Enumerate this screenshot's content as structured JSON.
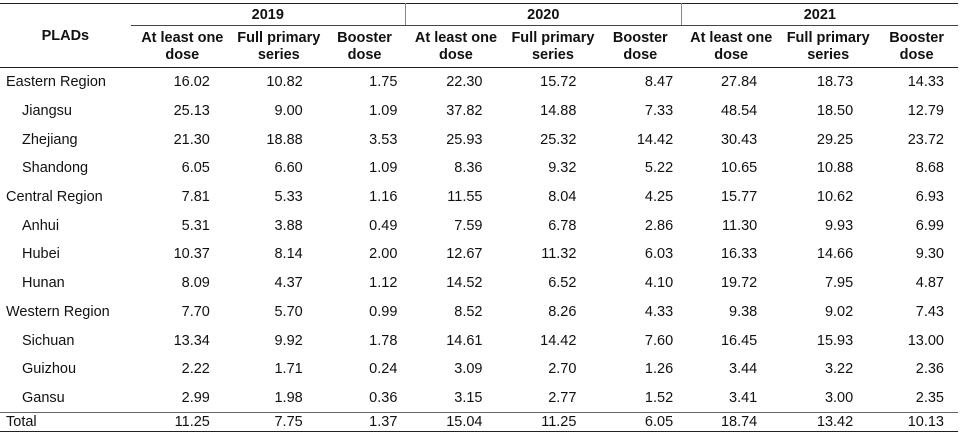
{
  "header": {
    "plads_label": "PLADs",
    "years": [
      "2019",
      "2020",
      "2021"
    ],
    "sub_columns": [
      "At least one dose",
      "Full primary series",
      "Booster dose"
    ]
  },
  "rows": [
    {
      "name": "Eastern Region",
      "level": "region",
      "values": [
        "16.02",
        "10.82",
        "1.75",
        "22.30",
        "15.72",
        "8.47",
        "27.84",
        "18.73",
        "14.33"
      ]
    },
    {
      "name": "Jiangsu",
      "level": "province",
      "values": [
        "25.13",
        "9.00",
        "1.09",
        "37.82",
        "14.88",
        "7.33",
        "48.54",
        "18.50",
        "12.79"
      ]
    },
    {
      "name": "Zhejiang",
      "level": "province",
      "values": [
        "21.30",
        "18.88",
        "3.53",
        "25.93",
        "25.32",
        "14.42",
        "30.43",
        "29.25",
        "23.72"
      ]
    },
    {
      "name": "Shandong",
      "level": "province",
      "values": [
        "6.05",
        "6.60",
        "1.09",
        "8.36",
        "9.32",
        "5.22",
        "10.65",
        "10.88",
        "8.68"
      ]
    },
    {
      "name": "Central Region",
      "level": "region",
      "values": [
        "7.81",
        "5.33",
        "1.16",
        "11.55",
        "8.04",
        "4.25",
        "15.77",
        "10.62",
        "6.93"
      ]
    },
    {
      "name": "Anhui",
      "level": "province",
      "values": [
        "5.31",
        "3.88",
        "0.49",
        "7.59",
        "6.78",
        "2.86",
        "11.30",
        "9.93",
        "6.99"
      ]
    },
    {
      "name": "Hubei",
      "level": "province",
      "values": [
        "10.37",
        "8.14",
        "2.00",
        "12.67",
        "11.32",
        "6.03",
        "16.33",
        "14.66",
        "9.30"
      ]
    },
    {
      "name": "Hunan",
      "level": "province",
      "values": [
        "8.09",
        "4.37",
        "1.12",
        "14.52",
        "6.52",
        "4.10",
        "19.72",
        "7.95",
        "4.87"
      ]
    },
    {
      "name": "Western Region",
      "level": "region",
      "values": [
        "7.70",
        "5.70",
        "0.99",
        "8.52",
        "8.26",
        "4.33",
        "9.38",
        "9.02",
        "7.43"
      ]
    },
    {
      "name": "Sichuan",
      "level": "province",
      "values": [
        "13.34",
        "9.92",
        "1.78",
        "14.61",
        "14.42",
        "7.60",
        "16.45",
        "15.93",
        "13.00"
      ]
    },
    {
      "name": "Guizhou",
      "level": "province",
      "values": [
        "2.22",
        "1.71",
        "0.24",
        "3.09",
        "2.70",
        "1.26",
        "3.44",
        "3.22",
        "2.36"
      ]
    },
    {
      "name": "Gansu",
      "level": "province",
      "values": [
        "2.99",
        "1.98",
        "0.36",
        "3.15",
        "2.77",
        "1.52",
        "3.41",
        "3.00",
        "2.35"
      ]
    }
  ],
  "total": {
    "name": "Total",
    "values": [
      "11.25",
      "7.75",
      "1.37",
      "15.04",
      "11.25",
      "6.05",
      "18.74",
      "13.42",
      "10.13"
    ]
  }
}
